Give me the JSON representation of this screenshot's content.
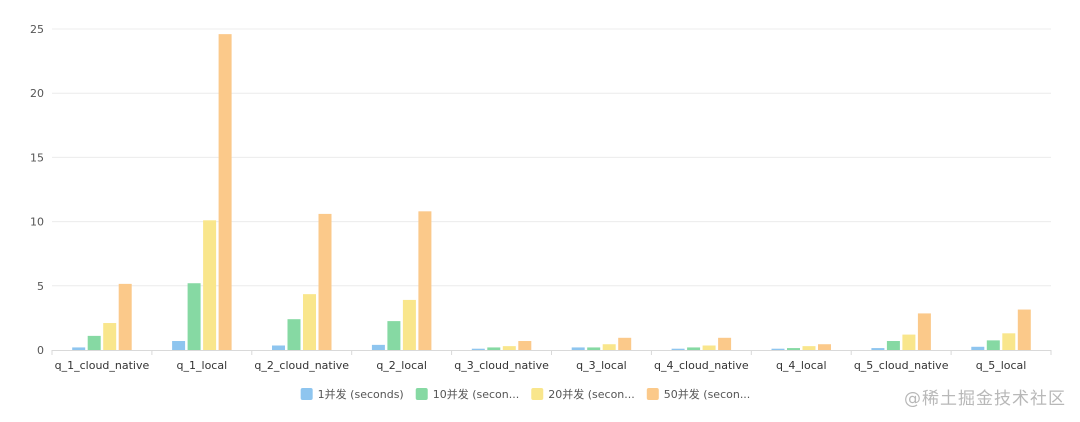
{
  "colors": {
    "axis": "#d9d9d9",
    "grid": "#ececec",
    "series": [
      "#8ec5ef",
      "#86d9a3",
      "#f9e68c",
      "#fbc98a"
    ]
  },
  "watermark": "@稀土掘金技术社区",
  "chart_data": {
    "type": "bar",
    "categories": [
      "q_1_cloud_native",
      "q_1_local",
      "q_2_cloud_native",
      "q_2_local",
      "q_3_cloud_native",
      "q_3_local",
      "q_4_cloud_native",
      "q_4_local",
      "q_5_cloud_native",
      "q_5_local"
    ],
    "series": [
      {
        "name": "1并发 (seconds)",
        "values": [
          0.2,
          0.7,
          0.35,
          0.4,
          0.1,
          0.2,
          0.1,
          0.1,
          0.15,
          0.25
        ]
      },
      {
        "name": "10并发 (secon...",
        "values": [
          1.1,
          5.2,
          2.4,
          2.25,
          0.2,
          0.2,
          0.2,
          0.15,
          0.7,
          0.75
        ]
      },
      {
        "name": "20并发 (secon...",
        "values": [
          2.1,
          10.1,
          4.35,
          3.9,
          0.3,
          0.45,
          0.35,
          0.3,
          1.2,
          1.3
        ]
      },
      {
        "name": "50并发 (secon...",
        "values": [
          5.15,
          24.6,
          10.6,
          10.8,
          0.7,
          0.95,
          0.95,
          0.45,
          2.85,
          3.15
        ]
      }
    ],
    "yticks": [
      0,
      5,
      10,
      15,
      20,
      25
    ],
    "ylim": [
      0,
      25
    ],
    "grid": true,
    "legend_position": "bottom-center"
  }
}
